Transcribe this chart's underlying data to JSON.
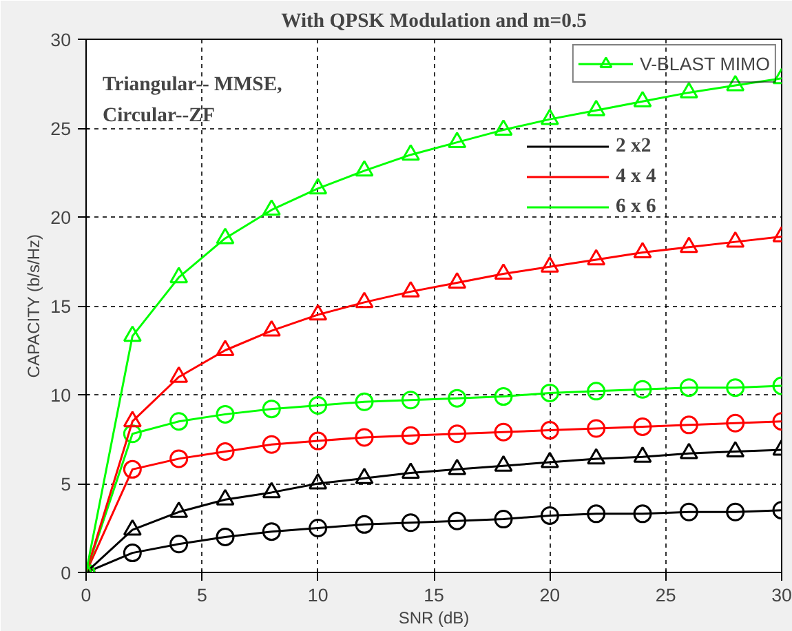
{
  "chart_data": {
    "type": "line",
    "title": "With QPSK Modulation and m=0.5",
    "xlabel": "SNR (dB)",
    "ylabel": "CAPACITY (b/s/Hz)",
    "x": [
      0,
      2,
      4,
      6,
      8,
      10,
      12,
      14,
      16,
      18,
      20,
      22,
      24,
      26,
      28,
      30
    ],
    "series": [
      {
        "name": "2 x2",
        "color": "#000000",
        "marker": "circle",
        "values": [
          0,
          1.1,
          1.6,
          2.0,
          2.3,
          2.5,
          2.7,
          2.8,
          2.9,
          3.0,
          3.2,
          3.3,
          3.3,
          3.4,
          3.4,
          3.5
        ]
      },
      {
        "name": "4 x 4",
        "color": "#ff0000",
        "marker": "circle",
        "values": [
          0,
          5.8,
          6.4,
          6.8,
          7.2,
          7.4,
          7.6,
          7.7,
          7.8,
          7.9,
          8.0,
          8.1,
          8.2,
          8.3,
          8.4,
          8.5
        ]
      },
      {
        "name": "6 x 6",
        "color": "#00ff00",
        "marker": "circle",
        "values": [
          0,
          7.8,
          8.5,
          8.9,
          9.2,
          9.4,
          9.6,
          9.7,
          9.8,
          9.9,
          10.1,
          10.2,
          10.3,
          10.4,
          10.4,
          10.5
        ]
      },
      {
        "color": "#000000",
        "marker": "triangle",
        "values": [
          0,
          2.4,
          3.4,
          4.1,
          4.5,
          5.0,
          5.3,
          5.6,
          5.8,
          6.0,
          6.2,
          6.4,
          6.5,
          6.7,
          6.8,
          6.9
        ]
      },
      {
        "color": "#ff0000",
        "marker": "triangle",
        "values": [
          0,
          8.5,
          11.0,
          12.5,
          13.6,
          14.5,
          15.2,
          15.8,
          16.3,
          16.8,
          17.2,
          17.6,
          18.0,
          18.3,
          18.6,
          18.9
        ]
      },
      {
        "name": "V-BLAST MIMO",
        "color": "#00ff00",
        "marker": "triangle",
        "values": [
          0,
          13.3,
          16.6,
          18.8,
          20.4,
          21.6,
          22.6,
          23.5,
          24.2,
          24.9,
          25.5,
          26.0,
          26.5,
          27.0,
          27.4,
          27.8
        ]
      }
    ],
    "xlim": [
      0,
      30
    ],
    "ylim": [
      0,
      30
    ],
    "xticks": [
      0,
      5,
      10,
      15,
      20,
      25,
      30
    ],
    "yticks": [
      0,
      5,
      10,
      15,
      20,
      25,
      30
    ],
    "grid": true,
    "legend": "top right",
    "line_style": "solid",
    "annotations": [
      "Triangular-- MMSE,\nCircular--ZF"
    ]
  }
}
